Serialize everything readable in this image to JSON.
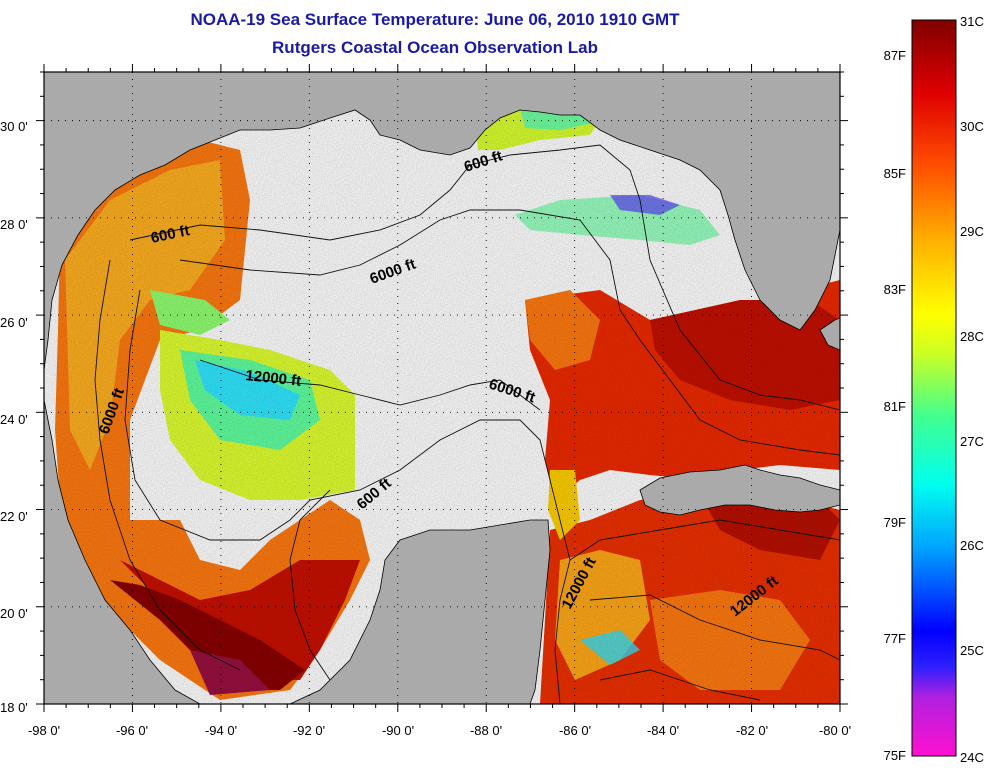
{
  "title": "NOAA-19 Sea Surface Temperature:  June 06, 2010 1910 GMT",
  "subtitle": "Rutgers Coastal Ocean Observation Lab",
  "map": {
    "lon_range": [
      -98,
      -80
    ],
    "lat_range": [
      18,
      31
    ],
    "x_tick_labels": [
      "-98 0'",
      "-96 0'",
      "-94 0'",
      "-92 0'",
      "-90 0'",
      "-88 0'",
      "-86 0'",
      "-84 0'",
      "-82 0'",
      "-80 0'"
    ],
    "y_tick_labels": [
      "30 0'",
      "28 0'",
      "26 0'",
      "24 0'",
      "22 0'",
      "20 0'",
      "18 0'"
    ],
    "grid": "dotted",
    "land_color": "#aaaaaa",
    "no_data_color": "#ffffff",
    "contour_labels": [
      "600 ft",
      "600 ft",
      "600 ft",
      "6000 ft",
      "6000 ft",
      "6000 ft",
      "12000 ft",
      "12000 ft",
      "12000 ft"
    ]
  },
  "colorbar": {
    "celsius_labels": [
      "31C",
      "30C",
      "29C",
      "28C",
      "27C",
      "26C",
      "25C",
      "24C"
    ],
    "fahrenheit_labels": [
      "87F",
      "85F",
      "83F",
      "81F",
      "79F",
      "77F",
      "75F"
    ],
    "colors": [
      "#f010d0",
      "#8030ff",
      "#0000ff",
      "#00aaff",
      "#00ffee",
      "#40ff90",
      "#c0ff20",
      "#ffff00",
      "#ffb000",
      "#ff6000",
      "#ff1000",
      "#c00000",
      "#800000"
    ]
  }
}
